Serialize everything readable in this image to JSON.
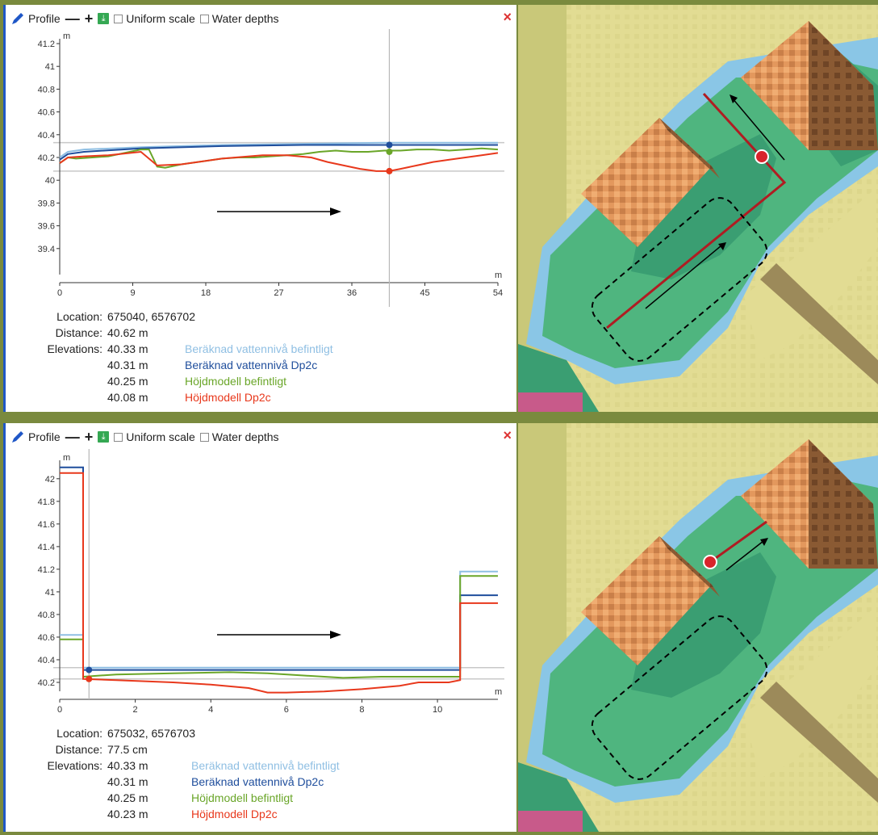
{
  "panels": [
    {
      "toolbar": {
        "title": "Profile",
        "minus": "—",
        "plus": "+",
        "uniform_label": "Uniform scale",
        "water_label": "Water depths",
        "close": "×"
      },
      "info": {
        "location_label": "Location:",
        "location": "675040, 6576702",
        "distance_label": "Distance:",
        "distance": "40.62 m",
        "elevations_label": "Elevations:",
        "elevations": [
          {
            "value": "40.33 m",
            "name": "Beräknad vattennivå befintligt",
            "color": "#8fbfe3"
          },
          {
            "value": "40.31 m",
            "name": "Beräknad vattennivå Dp2c",
            "color": "#1f4e9c"
          },
          {
            "value": "40.25 m",
            "name": "Höjdmodell befintligt",
            "color": "#6aa629"
          },
          {
            "value": "40.08 m",
            "name": "Höjdmodell Dp2c",
            "color": "#e8381c"
          }
        ]
      },
      "chart_data": {
        "type": "line",
        "y_unit": "m",
        "x_unit": "m",
        "xlim": [
          0,
          54
        ],
        "ylim": [
          39.2,
          41.2
        ],
        "x_ticks": [
          "0",
          "9",
          "18",
          "27",
          "36",
          "45",
          "54"
        ],
        "y_ticks": [
          "41.2",
          "41",
          "40.8",
          "40.6",
          "40.4",
          "40.2",
          "40",
          "39.8",
          "39.6",
          "39.4"
        ],
        "cursor_x": 40.62,
        "horizontal_refs": [
          40.33,
          40.31,
          40.25,
          40.08
        ],
        "series": [
          {
            "name": "Beräknad vattennivå befintligt",
            "color": "#8fbfe3",
            "x": [
              0,
              1,
              3,
              10,
              20,
              30,
              40,
              50,
              54
            ],
            "y": [
              40.2,
              40.25,
              40.27,
              40.29,
              40.31,
              40.32,
              40.33,
              40.33,
              40.33
            ]
          },
          {
            "name": "Beräknad vattennivå Dp2c",
            "color": "#1f4e9c",
            "x": [
              0,
              1,
              3,
              10,
              20,
              30,
              40,
              50,
              54
            ],
            "y": [
              40.18,
              40.23,
              40.25,
              40.28,
              40.3,
              40.31,
              40.31,
              40.31,
              40.31
            ]
          },
          {
            "name": "Höjdmodell befintligt",
            "color": "#6aa629",
            "x": [
              0,
              1,
              2,
              4,
              6,
              8,
              10,
              11,
              12,
              13,
              15,
              18,
              20,
              22,
              24,
              26,
              28,
              30,
              32,
              34,
              36,
              38,
              40,
              42,
              44,
              46,
              48,
              50,
              52,
              54
            ],
            "y": [
              40.15,
              40.2,
              40.19,
              40.2,
              40.21,
              40.24,
              40.27,
              40.27,
              40.12,
              40.11,
              40.14,
              40.17,
              40.19,
              40.2,
              40.2,
              40.21,
              40.22,
              40.23,
              40.25,
              40.26,
              40.25,
              40.25,
              40.26,
              40.26,
              40.27,
              40.27,
              40.26,
              40.27,
              40.28,
              40.27
            ]
          },
          {
            "name": "Höjdmodell Dp2c",
            "color": "#e8381c",
            "x": [
              0,
              1,
              3,
              6,
              10,
              12,
              15,
              20,
              25,
              28,
              31,
              33,
              35,
              37,
              39,
              40.6,
              42,
              44,
              46,
              48,
              50,
              52,
              54
            ],
            "y": [
              40.15,
              40.2,
              40.21,
              40.22,
              40.25,
              40.13,
              40.14,
              40.19,
              40.22,
              40.22,
              40.2,
              40.16,
              40.13,
              40.1,
              40.08,
              40.08,
              40.1,
              40.13,
              40.16,
              40.18,
              40.2,
              40.22,
              40.24
            ]
          }
        ],
        "markers": [
          {
            "y": 40.31,
            "color": "#1f4e9c"
          },
          {
            "y": 40.25,
            "color": "#6aa629"
          },
          {
            "y": 40.08,
            "color": "#e8381c"
          }
        ]
      }
    },
    {
      "toolbar": {
        "title": "Profile",
        "minus": "—",
        "plus": "+",
        "uniform_label": "Uniform scale",
        "water_label": "Water depths",
        "close": "×"
      },
      "info": {
        "location_label": "Location:",
        "location": "675032, 6576703",
        "distance_label": "Distance:",
        "distance": "77.5 cm",
        "elevations_label": "Elevations:",
        "elevations": [
          {
            "value": "40.33 m",
            "name": "Beräknad vattennivå befintligt",
            "color": "#8fbfe3"
          },
          {
            "value": "40.31 m",
            "name": "Beräknad vattennivå Dp2c",
            "color": "#1f4e9c"
          },
          {
            "value": "40.25 m",
            "name": "Höjdmodell befintligt",
            "color": "#6aa629"
          },
          {
            "value": "40.23 m",
            "name": "Höjdmodell Dp2c",
            "color": "#e8381c"
          }
        ]
      },
      "chart_data": {
        "type": "line",
        "y_unit": "m",
        "x_unit": "m",
        "xlim": [
          0,
          11.6
        ],
        "ylim": [
          40.15,
          42.12
        ],
        "x_ticks": [
          "0",
          "2",
          "4",
          "6",
          "8",
          "10"
        ],
        "y_ticks": [
          "42",
          "41.8",
          "41.6",
          "41.4",
          "41.2",
          "41",
          "40.8",
          "40.6",
          "40.4",
          "40.2"
        ],
        "cursor_x": 0.775,
        "horizontal_refs": [
          40.33,
          40.31,
          40.25,
          40.23
        ],
        "series": [
          {
            "name": "Beräknad vattennivå befintligt",
            "color": "#8fbfe3",
            "x": [
              0,
              0.55,
              0.55,
              0.62,
              0.62,
              10.6,
              10.6,
              11.6
            ],
            "y": [
              40.62,
              40.62,
              40.62,
              40.62,
              40.33,
              40.33,
              41.18,
              41.18
            ]
          },
          {
            "name": "Beräknad vattennivå Dp2c",
            "color": "#1f4e9c",
            "x": [
              0,
              0.55,
              0.55,
              0.62,
              0.62,
              10.6,
              10.6,
              11.6
            ],
            "y": [
              42.1,
              42.1,
              42.1,
              42.1,
              40.31,
              40.31,
              40.97,
              40.97
            ]
          },
          {
            "name": "Höjdmodell befintligt",
            "color": "#6aa629",
            "x": [
              0,
              0.55,
              0.55,
              0.62,
              0.62,
              1.5,
              3,
              4.5,
              5.5,
              6.5,
              7.5,
              8.5,
              9.5,
              10.3,
              10.6,
              10.6,
              11.6
            ],
            "y": [
              40.58,
              40.58,
              40.58,
              40.58,
              40.25,
              40.27,
              40.28,
              40.29,
              40.28,
              40.26,
              40.24,
              40.25,
              40.25,
              40.25,
              40.25,
              41.14,
              41.14
            ]
          },
          {
            "name": "Höjdmodell Dp2c",
            "color": "#e8381c",
            "x": [
              0,
              0.55,
              0.55,
              0.62,
              0.62,
              1.5,
              3,
              4,
              5,
              5.5,
              6,
              7,
              8,
              9,
              9.5,
              10.3,
              10.6,
              10.6,
              11.6
            ],
            "y": [
              42.05,
              42.05,
              42.05,
              42.05,
              40.23,
              40.22,
              40.2,
              40.18,
              40.15,
              40.11,
              40.11,
              40.12,
              40.14,
              40.17,
              40.2,
              40.2,
              40.22,
              40.9,
              40.9
            ]
          }
        ],
        "markers": [
          {
            "y": 40.31,
            "color": "#1f4e9c"
          },
          {
            "y": 40.23,
            "color": "#e8381c"
          }
        ]
      }
    }
  ]
}
